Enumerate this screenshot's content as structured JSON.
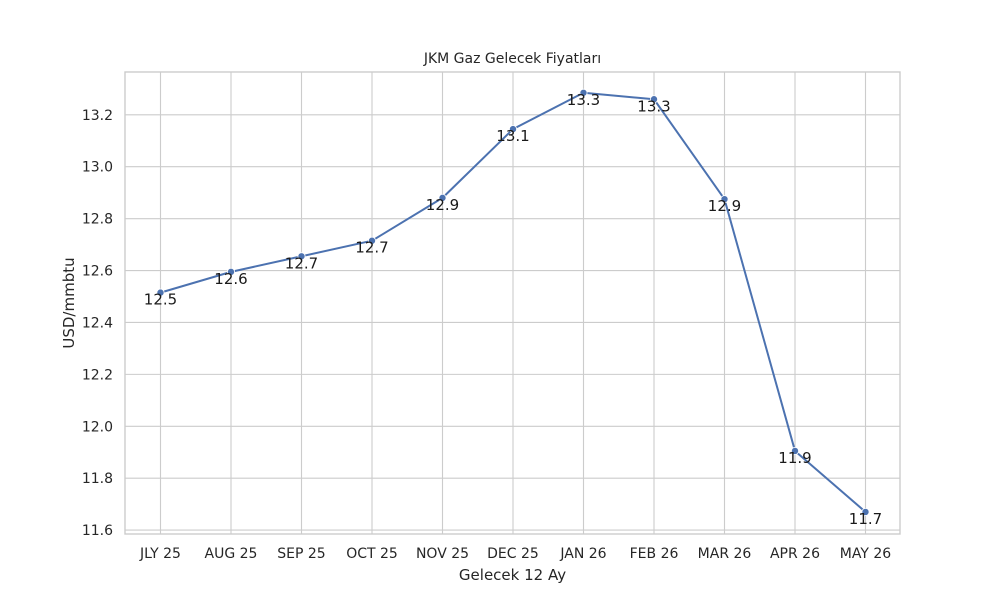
{
  "chart_data": {
    "type": "line",
    "title": "JKM Gaz Gelecek Fiyatları",
    "xlabel": "Gelecek 12 Ay",
    "ylabel": "USD/mmbtu",
    "categories": [
      "JLY 25",
      "AUG 25",
      "SEP 25",
      "OCT 25",
      "NOV 25",
      "DEC 25",
      "JAN 26",
      "FEB 26",
      "MAR 26",
      "APR 26",
      "MAY 26"
    ],
    "series": [
      {
        "values": [
          12.515,
          12.595,
          12.655,
          12.715,
          12.88,
          13.145,
          13.285,
          13.26,
          12.875,
          11.905,
          11.67
        ],
        "labels": [
          "12.5",
          "12.6",
          "12.7",
          "12.7",
          "12.9",
          "13.1",
          "13.3",
          "13.3",
          "12.9",
          "11.9",
          "11.7"
        ],
        "color": "#4c72b0"
      }
    ],
    "ylim": [
      11.585,
      13.365
    ],
    "yticks": [
      11.6,
      11.8,
      12.0,
      12.2,
      12.4,
      12.6,
      12.8,
      13.0,
      13.2
    ],
    "ytick_labels": [
      "11.6",
      "11.8",
      "12.0",
      "12.2",
      "12.4",
      "12.6",
      "12.8",
      "13.0",
      "13.2"
    ],
    "grid": true,
    "legend": "none"
  }
}
